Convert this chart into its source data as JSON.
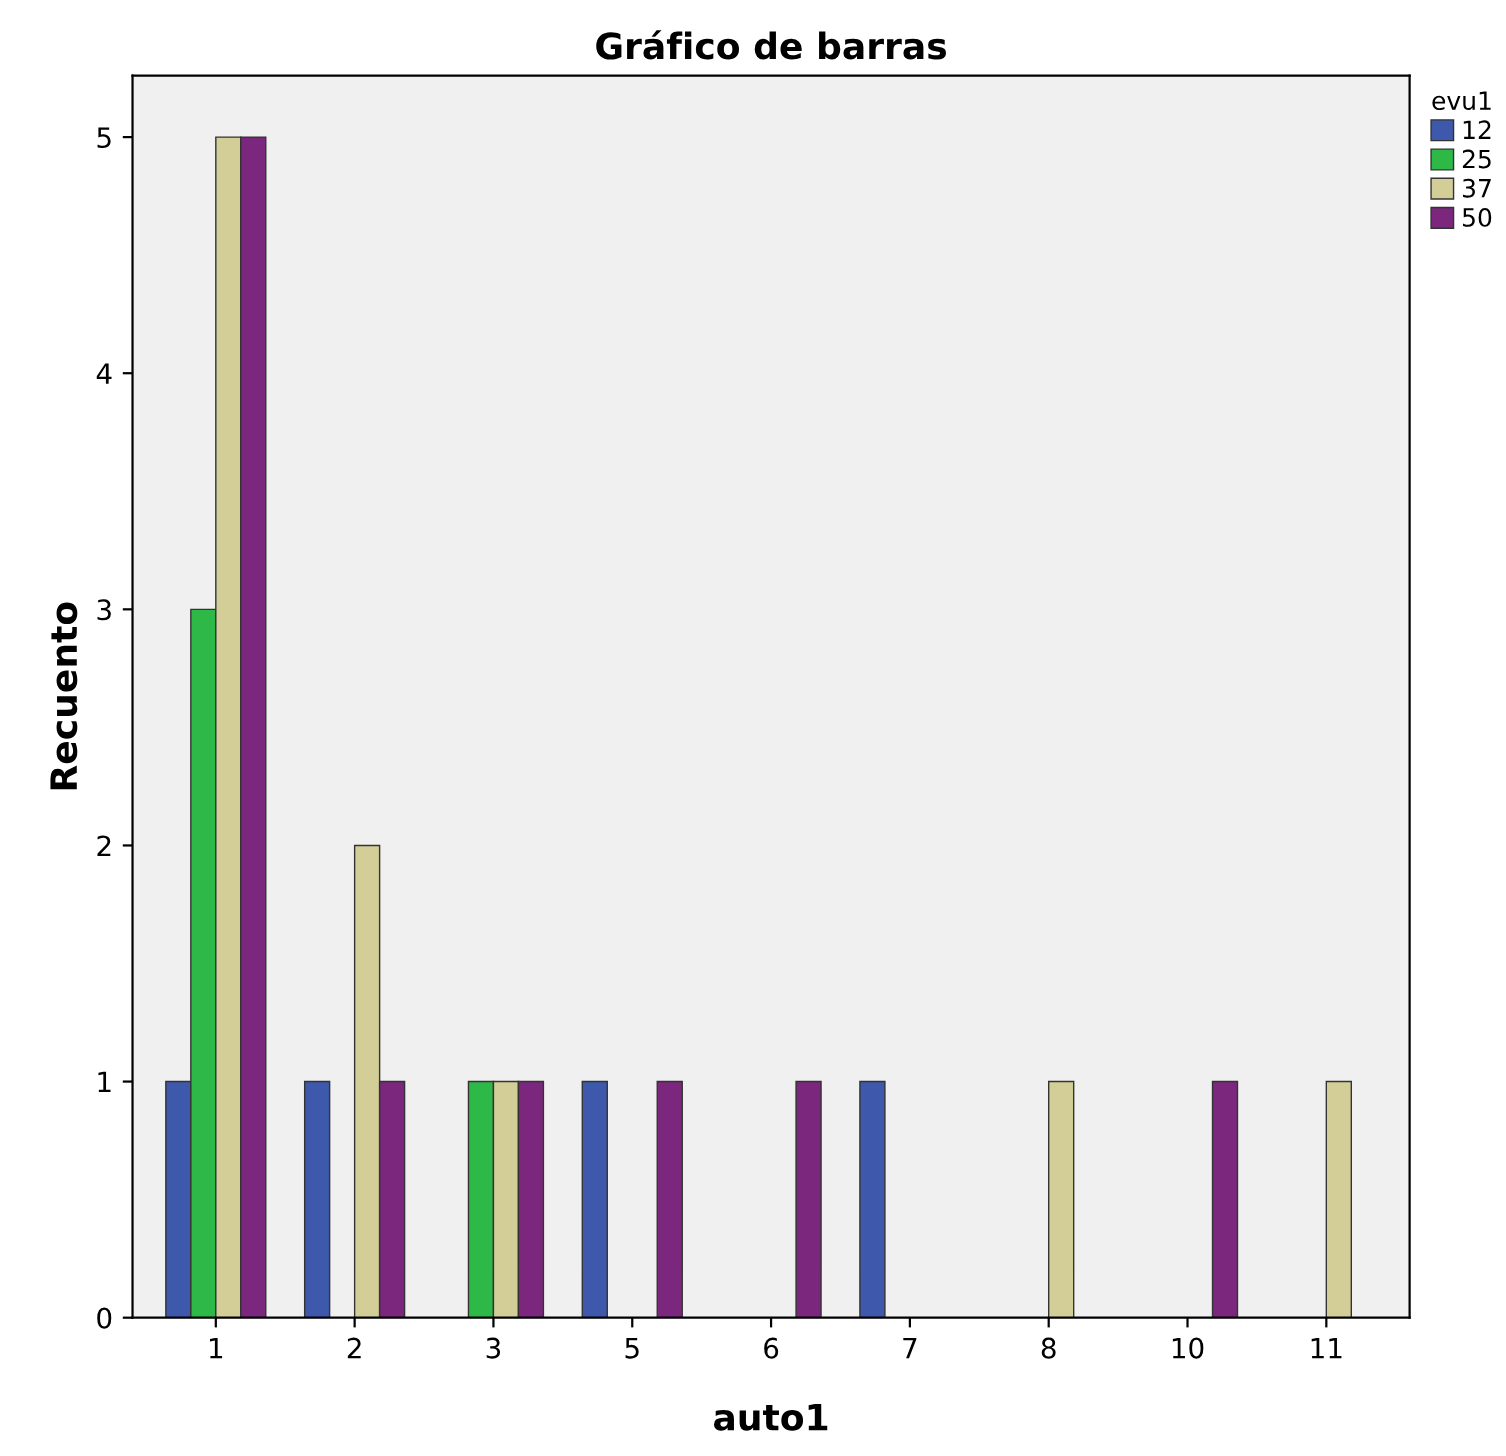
{
  "chart_data": {
    "type": "bar",
    "title": "Gráfico de barras",
    "xlabel": "auto1",
    "ylabel": "Recuento",
    "legend_title": "evu1",
    "categories": [
      "1",
      "2",
      "3",
      "5",
      "6",
      "7",
      "8",
      "10",
      "11"
    ],
    "series": [
      {
        "name": "12",
        "color": "#3e58ac",
        "values": [
          1,
          1,
          null,
          1,
          null,
          1,
          null,
          null,
          null
        ]
      },
      {
        "name": "25",
        "color": "#2eb848",
        "values": [
          3,
          null,
          1,
          null,
          null,
          null,
          null,
          null,
          null
        ]
      },
      {
        "name": "37",
        "color": "#d3ce97",
        "values": [
          5,
          2,
          1,
          null,
          null,
          null,
          1,
          null,
          1
        ]
      },
      {
        "name": "50",
        "color": "#7b277d",
        "values": [
          5,
          1,
          1,
          1,
          1,
          null,
          null,
          1,
          null
        ]
      }
    ],
    "ylim": [
      0,
      5.26
    ],
    "yticks": [
      0,
      1,
      2,
      3,
      4,
      5
    ],
    "grid": false,
    "legend": "top right"
  }
}
